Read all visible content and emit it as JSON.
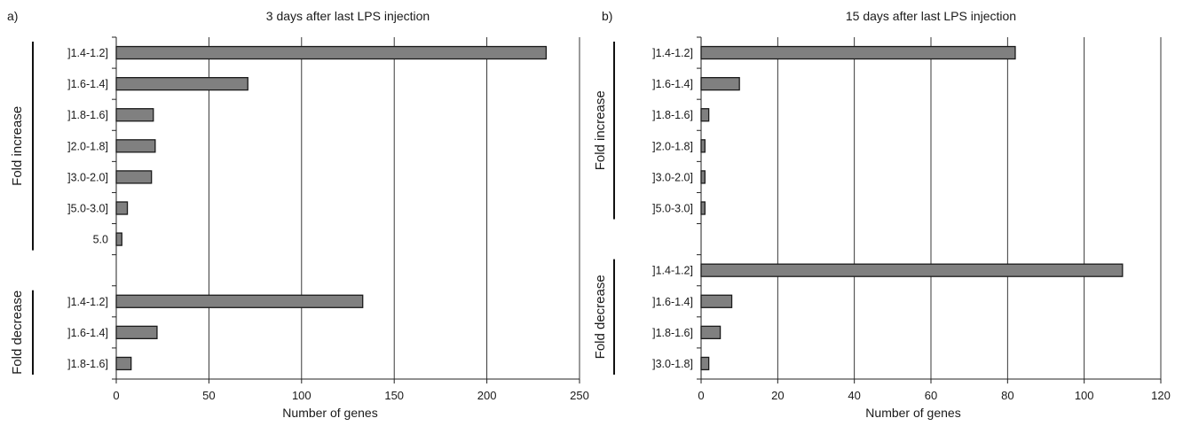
{
  "chart_data": [
    {
      "panel": "a)",
      "type": "bar",
      "orientation": "horizontal",
      "title": "3 days after last LPS injection",
      "xlabel": "Number of genes",
      "xlim": [
        0,
        250
      ],
      "xticks": [
        0,
        50,
        100,
        150,
        200,
        250
      ],
      "grid": "vertical",
      "colors": {
        "bar": "#808080",
        "bar_edge": "#1a1a1a"
      },
      "rows": [
        {
          "label": "]1.4-1.2]",
          "value": 232
        },
        {
          "label": "]1.6-1.4]",
          "value": 71
        },
        {
          "label": "]1.8-1.6]",
          "value": 20
        },
        {
          "label": "]2.0-1.8]",
          "value": 21
        },
        {
          "label": "]3.0-2.0]",
          "value": 19
        },
        {
          "label": "]5.0-3.0]",
          "value": 6
        },
        {
          "label": "5.0",
          "value": 3
        },
        {
          "label": "",
          "value": null
        },
        {
          "label": "]1.4-1.2]",
          "value": 133
        },
        {
          "label": "]1.6-1.4]",
          "value": 22
        },
        {
          "label": "]1.8-1.6]",
          "value": 8
        }
      ],
      "groups": [
        {
          "label": "Fold increase",
          "first_row": 0,
          "last_row": 6
        },
        {
          "label": "Fold decrease",
          "first_row": 8,
          "last_row": 10
        }
      ]
    },
    {
      "panel": "b)",
      "type": "bar",
      "orientation": "horizontal",
      "title": "15 days after last LPS injection",
      "xlabel": "Number of genes",
      "xlim": [
        0,
        120
      ],
      "xticks": [
        0,
        20,
        40,
        60,
        80,
        100,
        120
      ],
      "grid": "vertical",
      "colors": {
        "bar": "#808080",
        "bar_edge": "#1a1a1a"
      },
      "rows": [
        {
          "label": "]1.4-1.2]",
          "value": 82
        },
        {
          "label": "]1.6-1.4]",
          "value": 10
        },
        {
          "label": "]1.8-1.6]",
          "value": 2
        },
        {
          "label": "]2.0-1.8]",
          "value": 1
        },
        {
          "label": "]3.0-2.0]",
          "value": 1
        },
        {
          "label": "]5.0-3.0]",
          "value": 1
        },
        {
          "label": "",
          "value": null
        },
        {
          "label": "]1.4-1.2]",
          "value": 110
        },
        {
          "label": "]1.6-1.4]",
          "value": 8
        },
        {
          "label": "]1.8-1.6]",
          "value": 5
        },
        {
          "label": "]3.0-1.8]",
          "value": 2
        }
      ],
      "groups": [
        {
          "label": "Fold increase",
          "first_row": 0,
          "last_row": 5
        },
        {
          "label": "Fold decrease",
          "first_row": 7,
          "last_row": 10
        }
      ]
    }
  ]
}
